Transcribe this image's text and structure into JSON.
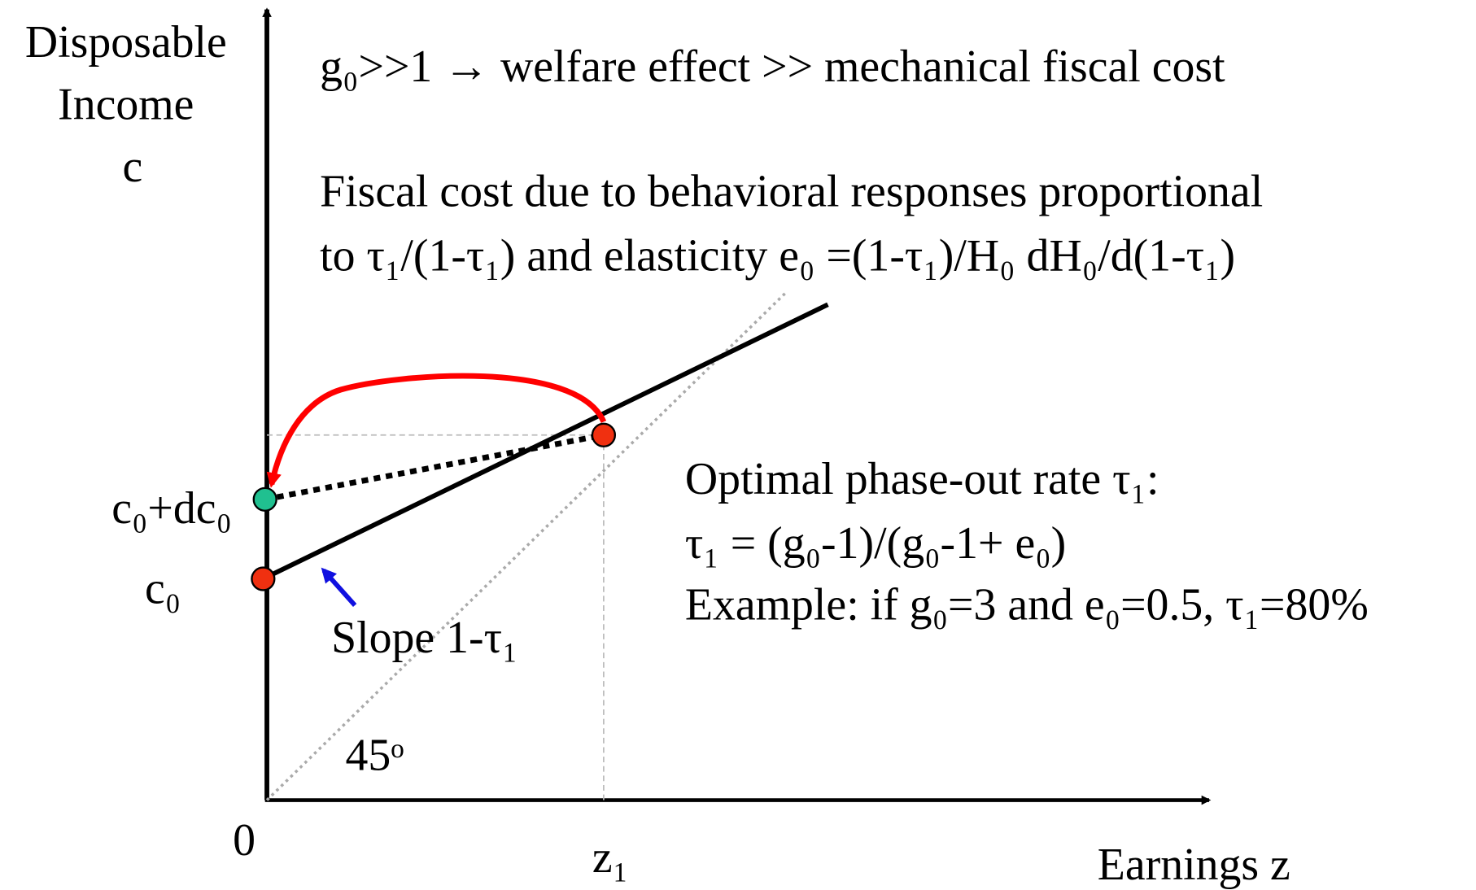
{
  "y_axis_label": [
    "Disposable",
    "Income",
    "c"
  ],
  "x_axis_label": "Earnings z",
  "origin_label": "0",
  "headline": "g₀>>1 → welfare effect >> mechanical fiscal cost",
  "fiscal_note": [
    "Fiscal cost due to behavioral responses proportional",
    "to τ₁/(1-τ₁) and elasticity e₀ =(1-τ₁)/H₀ dH₀/d(1-τ₁)"
  ],
  "optimal_note": [
    "Optimal phase-out rate τ₁:",
    "τ₁ = (g₀-1)/(g₀-1+ e₀)",
    "Example: if g₀=3 and e₀=0.5, τ₁=80%"
  ],
  "labels": {
    "c0_dc0": "c₀+dc₀",
    "c0": "c₀",
    "slope": "Slope 1-τ₁",
    "angle": "45ᵒ",
    "z1": "z₁"
  }
}
